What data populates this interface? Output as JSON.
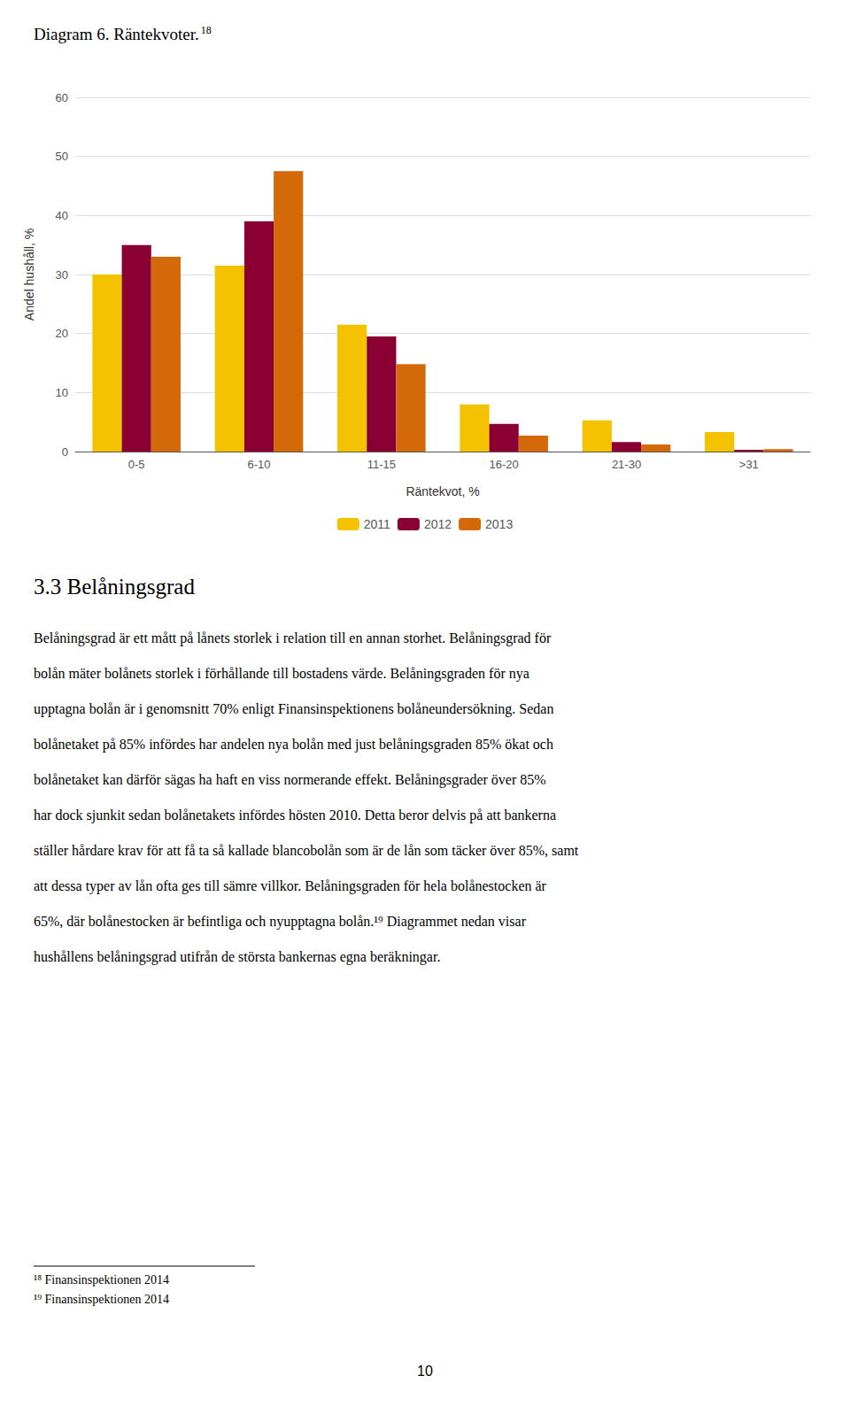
{
  "chart_data": {
    "type": "bar",
    "title": "Diagram 6. Räntekvoter.",
    "categories": [
      "0-5",
      "6-10",
      "11-15",
      "16-20",
      "21-30",
      ">31"
    ],
    "series": [
      {
        "name": "2011",
        "color": "#F5C200",
        "values": [
          30,
          31.5,
          21.5,
          8,
          5.3,
          3.3
        ]
      },
      {
        "name": "2012",
        "color": "#8B0033",
        "values": [
          35,
          39,
          19.5,
          4.7,
          1.6,
          0.3
        ]
      },
      {
        "name": "2013",
        "color": "#D4690A",
        "values": [
          33,
          47.5,
          14.8,
          2.7,
          1.2,
          0.4
        ]
      }
    ],
    "xlabel": "Räntekvot, %",
    "ylabel": "Andel hushåll, %",
    "ylim": [
      0,
      60
    ],
    "yticks": [
      0,
      10,
      20,
      30,
      40,
      50,
      60
    ],
    "grid": true,
    "legend": "bottom"
  },
  "title_superscript": "18",
  "section_title": "3.3 Belåningsgrad",
  "body_text": [
    "Belåningsgrad är ett mått på lånets storlek i relation till en annan storhet. Belåningsgrad för",
    "bolån mäter bolånets storlek i förhållande till bostadens värde. Belåningsgraden för nya",
    "upptagna bolån är i genomsnitt 70% enligt Finansinspektionens bolåneundersökning. Sedan",
    "bolånetaket på 85% infördes har andelen nya bolån med just belåningsgraden 85% ökat och",
    "bolånetaket kan därför sägas ha haft en viss normerande effekt. Belåningsgrader över 85%",
    "har dock sjunkit sedan bolånetakets infördes hösten 2010. Detta beror delvis på att bankerna",
    "ställer hårdare krav för att få ta så kallade blancobolån som är de lån som täcker över 85%, samt",
    "att dessa typer av lån ofta ges till sämre villkor. Belåningsgraden för hela bolånestocken är",
    "65%, där bolånestocken är befintliga och nyupptagna bolån.¹⁹ Diagrammet nedan visar",
    "hushållens belåningsgrad utifrån de största bankernas egna beräkningar."
  ],
  "footnotes": [
    "¹⁸ Finansinspektionen 2014",
    "¹⁹ Finansinspektionen 2014"
  ],
  "page_number": "10"
}
